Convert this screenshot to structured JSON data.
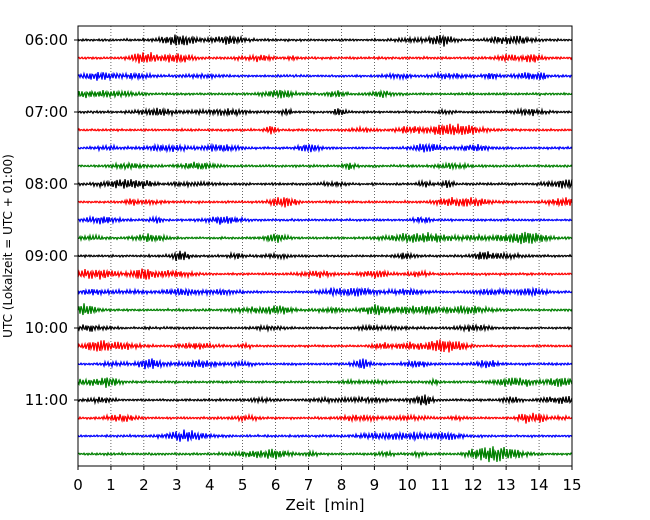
{
  "chart_data": {
    "type": "line",
    "subtype": "helicorder",
    "xlabel": "Zeit  [min]",
    "ylabel": "UTC (Lokalzeit = UTC + 01:00)",
    "xlim": [
      0,
      15
    ],
    "x_ticks": [
      "0",
      "1",
      "2",
      "3",
      "4",
      "5",
      "6",
      "7",
      "8",
      "9",
      "10",
      "11",
      "12",
      "13",
      "14",
      "15"
    ],
    "y_ticks": [
      "06:00",
      "07:00",
      "08:00",
      "09:00",
      "10:00",
      "11:00"
    ],
    "line_interval_min": 15,
    "grid": "vertical dotted at each minute",
    "series_colors": [
      "#000000",
      "#ff0000",
      "#0000ff",
      "#008000"
    ],
    "rows": [
      "06:00",
      "06:15",
      "06:30",
      "06:45",
      "07:00",
      "07:15",
      "07:30",
      "07:45",
      "08:00",
      "08:15",
      "08:30",
      "08:45",
      "09:00",
      "09:15",
      "09:30",
      "09:45",
      "10:00",
      "10:15",
      "10:30",
      "10:45",
      "11:00",
      "11:15",
      "11:30",
      "11:45"
    ]
  }
}
